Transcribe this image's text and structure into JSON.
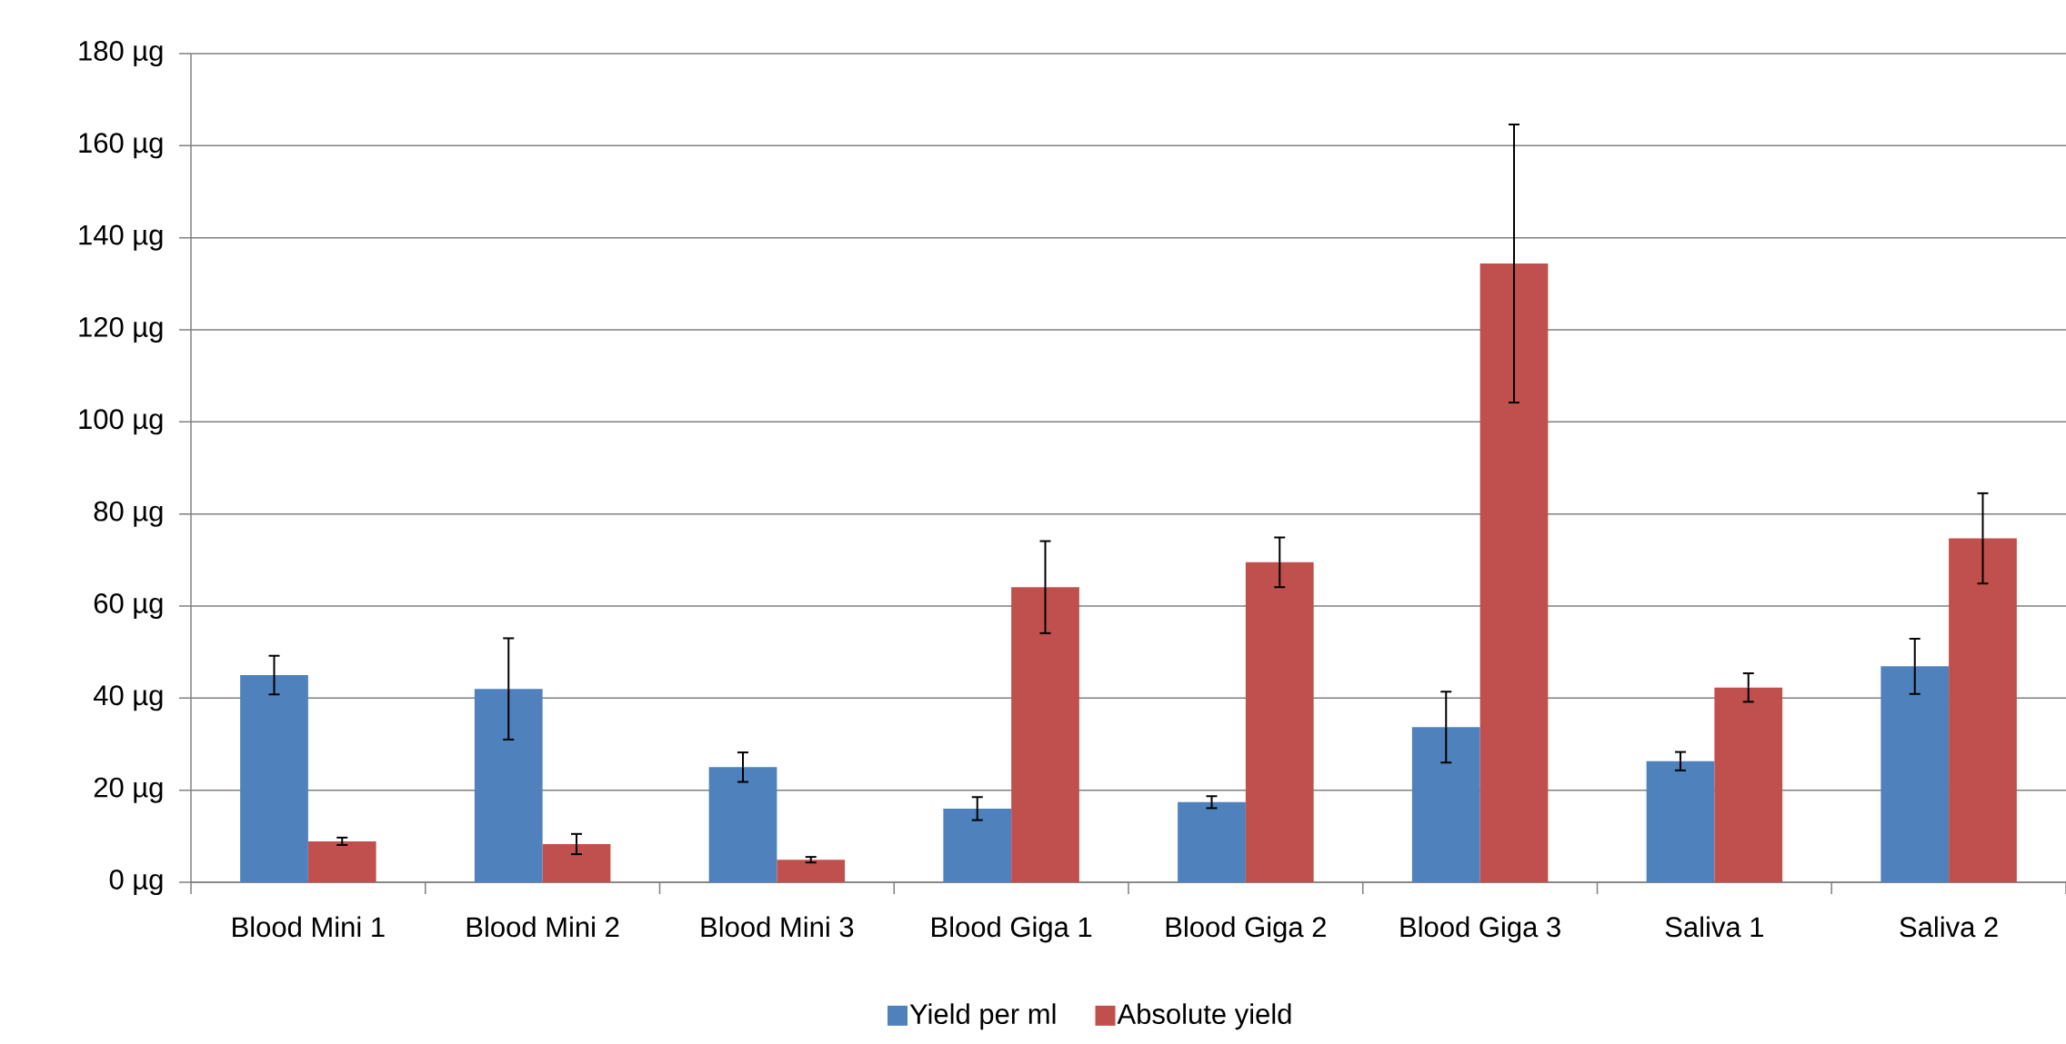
{
  "chart_data": {
    "type": "bar",
    "categories": [
      "Blood Mini 1",
      "Blood Mini 2",
      "Blood Mini 3",
      "Blood Giga 1",
      "Blood Giga 2",
      "Blood Giga 3",
      "Saliva 1",
      "Saliva 2"
    ],
    "series": [
      {
        "name": "Yield per ml",
        "color": "#4f81bd",
        "values": [
          45,
          42,
          25,
          16,
          17.4,
          33.7,
          26.3,
          46.9
        ],
        "errors": [
          4.2,
          11,
          3.2,
          2.5,
          1.3,
          7.7,
          2,
          6
        ]
      },
      {
        "name": "Absolute yield",
        "color": "#c0504d",
        "values": [
          8.9,
          8.3,
          4.9,
          64.1,
          69.5,
          134.4,
          42.3,
          74.7
        ],
        "errors": [
          0.8,
          2.2,
          0.6,
          10,
          5.4,
          30.2,
          3.1,
          9.8
        ]
      }
    ],
    "ylim": [
      0,
      180
    ],
    "yticks": [
      {
        "value": 0,
        "label": "0 µg"
      },
      {
        "value": 20,
        "label": "20 µg"
      },
      {
        "value": 40,
        "label": "40 µg"
      },
      {
        "value": 60,
        "label": "60 µg"
      },
      {
        "value": 80,
        "label": "80 µg"
      },
      {
        "value": 100,
        "label": "100 µg"
      },
      {
        "value": 120,
        "label": "120 µg"
      },
      {
        "value": 140,
        "label": "140 µg"
      },
      {
        "value": 160,
        "label": "160 µg"
      },
      {
        "value": 180,
        "label": "180 µg"
      }
    ],
    "grid": "y",
    "legend": "bottom"
  }
}
